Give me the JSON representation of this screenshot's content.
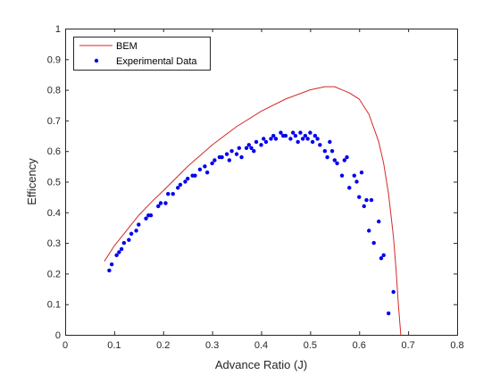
{
  "chart_data": {
    "type": "line",
    "title": "",
    "xlabel": "Advance Ratio (J)",
    "ylabel": "Efficency",
    "xlim": [
      0,
      0.8
    ],
    "ylim": [
      0,
      1
    ],
    "xticks": [
      0,
      0.1,
      0.2,
      0.3,
      0.4,
      0.5,
      0.6,
      0.7,
      0.8
    ],
    "xtick_labels": [
      "0",
      "0.1",
      "0.2",
      "0.3",
      "0.4",
      "0.5",
      "0.6",
      "0.7",
      "0.8"
    ],
    "yticks": [
      0,
      0.1,
      0.2,
      0.3,
      0.4,
      0.5,
      0.6,
      0.7,
      0.8,
      0.9,
      1
    ],
    "ytick_labels": [
      "0",
      "0.1",
      "0.2",
      "0.3",
      "0.4",
      "0.5",
      "0.6",
      "0.7",
      "0.8",
      "0.9",
      "1"
    ],
    "grid": false,
    "legend_position": "top-left",
    "series": [
      {
        "name": "BEM",
        "kind": "line",
        "color": "#d62728",
        "x": [
          0.08,
          0.1,
          0.12,
          0.15,
          0.18,
          0.2,
          0.25,
          0.3,
          0.35,
          0.4,
          0.45,
          0.5,
          0.53,
          0.55,
          0.58,
          0.6,
          0.62,
          0.64,
          0.65,
          0.66,
          0.67,
          0.675,
          0.68,
          0.685
        ],
        "y": [
          0.24,
          0.29,
          0.33,
          0.39,
          0.44,
          0.47,
          0.55,
          0.62,
          0.68,
          0.73,
          0.77,
          0.8,
          0.81,
          0.81,
          0.79,
          0.77,
          0.72,
          0.63,
          0.56,
          0.46,
          0.32,
          0.22,
          0.1,
          0.0
        ]
      },
      {
        "name": "Experimental Data",
        "kind": "scatter",
        "color": "#0000ee",
        "x": [
          0.09,
          0.095,
          0.105,
          0.11,
          0.115,
          0.12,
          0.13,
          0.135,
          0.145,
          0.15,
          0.165,
          0.17,
          0.175,
          0.19,
          0.195,
          0.205,
          0.21,
          0.22,
          0.23,
          0.235,
          0.245,
          0.25,
          0.26,
          0.265,
          0.275,
          0.285,
          0.29,
          0.3,
          0.305,
          0.315,
          0.32,
          0.33,
          0.335,
          0.34,
          0.35,
          0.355,
          0.36,
          0.37,
          0.375,
          0.38,
          0.385,
          0.39,
          0.4,
          0.405,
          0.41,
          0.42,
          0.425,
          0.43,
          0.44,
          0.445,
          0.45,
          0.46,
          0.465,
          0.47,
          0.475,
          0.48,
          0.485,
          0.49,
          0.495,
          0.5,
          0.505,
          0.51,
          0.515,
          0.52,
          0.53,
          0.535,
          0.54,
          0.545,
          0.55,
          0.555,
          0.565,
          0.57,
          0.575,
          0.58,
          0.59,
          0.595,
          0.6,
          0.605,
          0.61,
          0.615,
          0.62,
          0.625,
          0.63,
          0.64,
          0.645,
          0.65,
          0.66,
          0.67
        ],
        "y": [
          0.21,
          0.23,
          0.26,
          0.27,
          0.28,
          0.3,
          0.31,
          0.33,
          0.34,
          0.36,
          0.38,
          0.39,
          0.39,
          0.42,
          0.43,
          0.43,
          0.46,
          0.46,
          0.48,
          0.49,
          0.5,
          0.51,
          0.52,
          0.52,
          0.54,
          0.55,
          0.53,
          0.56,
          0.57,
          0.58,
          0.58,
          0.59,
          0.57,
          0.6,
          0.59,
          0.61,
          0.58,
          0.61,
          0.62,
          0.61,
          0.6,
          0.63,
          0.62,
          0.64,
          0.63,
          0.64,
          0.65,
          0.64,
          0.66,
          0.65,
          0.65,
          0.64,
          0.66,
          0.65,
          0.63,
          0.66,
          0.64,
          0.65,
          0.64,
          0.66,
          0.63,
          0.65,
          0.64,
          0.62,
          0.6,
          0.58,
          0.63,
          0.6,
          0.57,
          0.56,
          0.52,
          0.57,
          0.58,
          0.48,
          0.52,
          0.5,
          0.45,
          0.53,
          0.42,
          0.44,
          0.34,
          0.44,
          0.3,
          0.37,
          0.25,
          0.26,
          0.07,
          0.14
        ]
      }
    ]
  }
}
